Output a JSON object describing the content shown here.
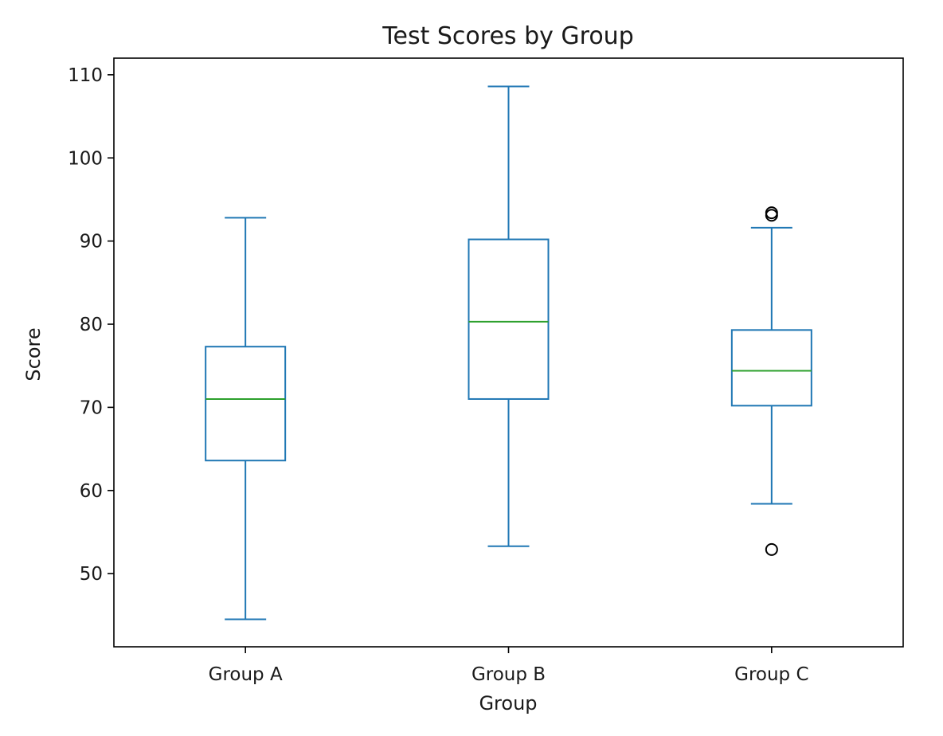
{
  "chart_data": {
    "type": "boxplot",
    "title": "Test Scores by Group",
    "xlabel": "Group",
    "ylabel": "Score",
    "ylim": [
      41.2,
      112
    ],
    "yticks": [
      50,
      60,
      70,
      80,
      90,
      100,
      110
    ],
    "grid": false,
    "colors": {
      "box": "#1f77b4",
      "median": "#2ca02c",
      "outlier": "#000000",
      "axes": "#000000"
    },
    "groups": [
      {
        "name": "Group A",
        "whisker_low": 44.5,
        "q1": 63.6,
        "median": 71.0,
        "q3": 77.3,
        "whisker_high": 92.8,
        "outliers": []
      },
      {
        "name": "Group B",
        "whisker_low": 53.3,
        "q1": 71.0,
        "median": 80.3,
        "q3": 90.2,
        "whisker_high": 108.6,
        "outliers": []
      },
      {
        "name": "Group C",
        "whisker_low": 58.4,
        "q1": 70.2,
        "median": 74.4,
        "q3": 79.3,
        "whisker_high": 91.6,
        "outliers": [
          93.1,
          93.4,
          52.9
        ]
      }
    ]
  }
}
